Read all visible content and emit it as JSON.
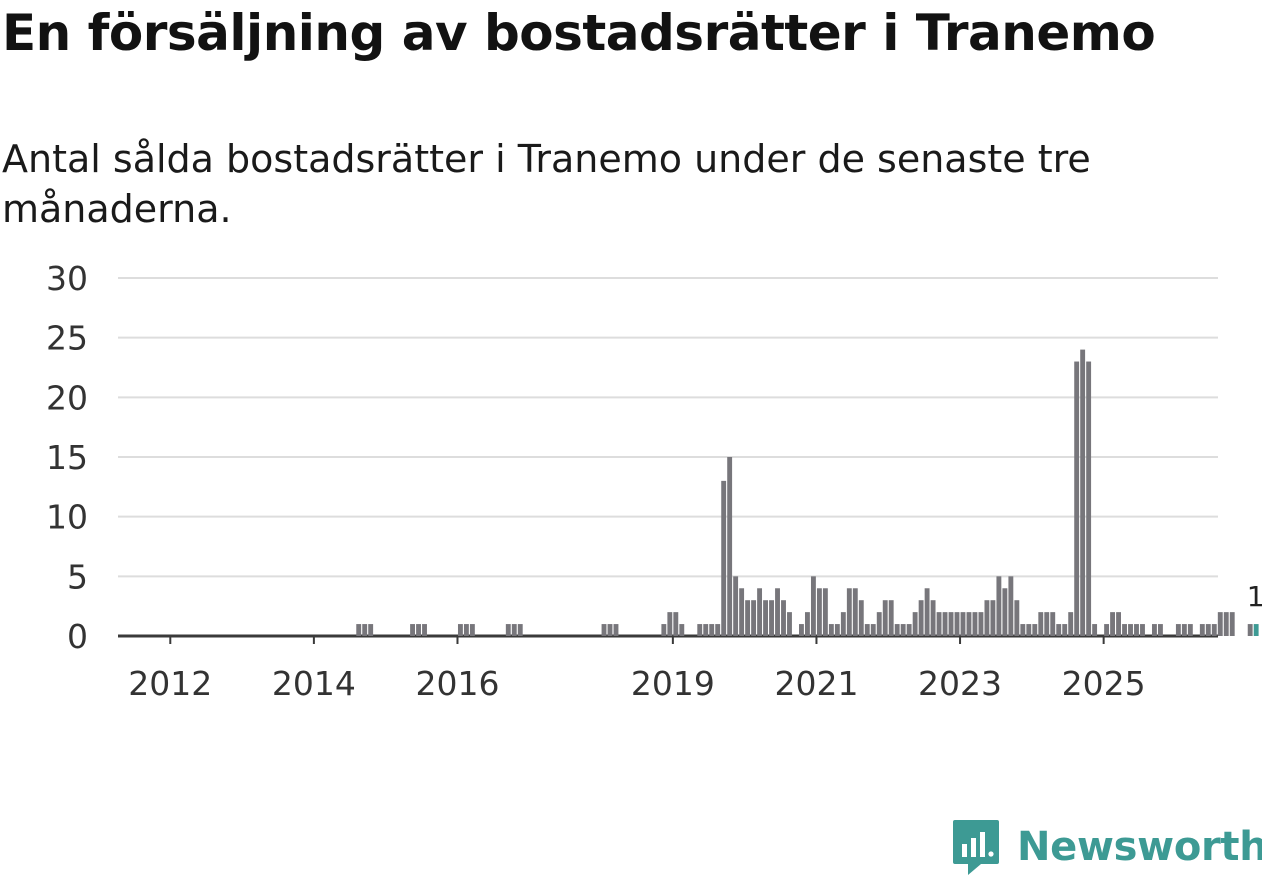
{
  "title": "En försäljning av bostadsrätter i Tranemo",
  "subtitle": "Antal sålda bostadsrätter i Tranemo under de senaste tre månaderna.",
  "brand": {
    "name": "Newsworthy",
    "icon": "newsworthy-logo-icon",
    "color": "#3d9a94"
  },
  "chart_data": {
    "type": "bar",
    "title": "En försäljning av bostadsrätter i Tranemo",
    "xlabel": "",
    "ylabel": "",
    "ylim": [
      0,
      30
    ],
    "yticks": [
      0,
      5,
      10,
      15,
      20,
      25,
      30
    ],
    "xticks": [
      "2012",
      "2014",
      "2016",
      "2019",
      "2021",
      "2023",
      "2025"
    ],
    "grid": true,
    "bar_color": "#77767b",
    "highlight_color": "#3d9a94",
    "start_month": "2011-01",
    "highlight_label": "1",
    "values": [
      0,
      0,
      0,
      0,
      0,
      0,
      0,
      0,
      0,
      0,
      0,
      0,
      0,
      0,
      0,
      0,
      0,
      0,
      0,
      0,
      0,
      0,
      0,
      0,
      0,
      0,
      0,
      0,
      0,
      0,
      0,
      0,
      0,
      0,
      0,
      0,
      0,
      0,
      0,
      0,
      0,
      0,
      0,
      1,
      1,
      1,
      0,
      0,
      0,
      0,
      0,
      0,
      1,
      1,
      1,
      0,
      0,
      0,
      0,
      0,
      1,
      1,
      1,
      0,
      0,
      0,
      0,
      0,
      1,
      1,
      1,
      0,
      0,
      0,
      0,
      0,
      0,
      0,
      0,
      0,
      0,
      0,
      0,
      0,
      1,
      1,
      1,
      0,
      0,
      0,
      0,
      0,
      0,
      0,
      1,
      2,
      2,
      1,
      0,
      0,
      1,
      1,
      1,
      1,
      13,
      15,
      5,
      4,
      3,
      3,
      4,
      3,
      3,
      4,
      3,
      2,
      0,
      1,
      2,
      5,
      4,
      4,
      1,
      1,
      2,
      4,
      4,
      3,
      1,
      1,
      2,
      3,
      3,
      1,
      1,
      1,
      2,
      3,
      4,
      3,
      2,
      2,
      2,
      2,
      2,
      2,
      2,
      2,
      3,
      3,
      5,
      4,
      5,
      3,
      1,
      1,
      1,
      2,
      2,
      2,
      1,
      1,
      2,
      23,
      24,
      23,
      1,
      0,
      1,
      2,
      2,
      1,
      1,
      1,
      1,
      0,
      1,
      1,
      0,
      0,
      1,
      1,
      1,
      0,
      1,
      1,
      1,
      2,
      2,
      2,
      0,
      0,
      1,
      1
    ]
  }
}
